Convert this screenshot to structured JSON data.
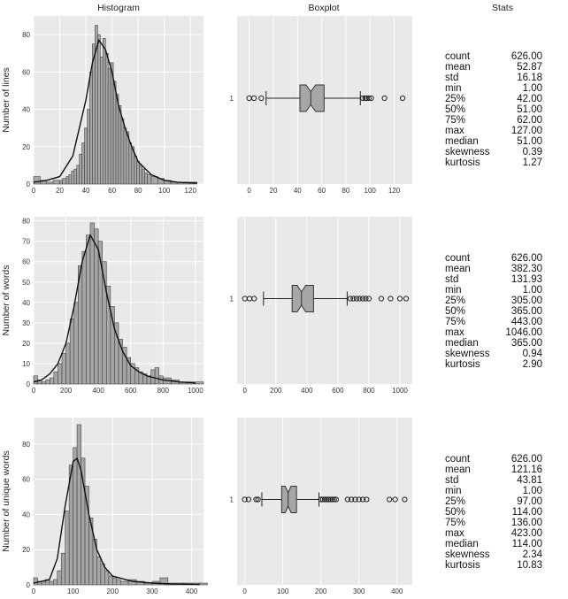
{
  "headers": {
    "histogram": "Histogram",
    "boxplot": "Boxplot",
    "stats": "Stats"
  },
  "chart_data": [
    {
      "type": "bar",
      "ylabel": "Number of lines",
      "xlim": [
        0,
        130
      ],
      "ylim": [
        0,
        90
      ],
      "xticks": [
        0,
        20,
        40,
        60,
        80,
        100,
        120
      ],
      "yticks": [
        0,
        20,
        40,
        60,
        80
      ],
      "kde": [
        [
          0,
          1
        ],
        [
          10,
          2
        ],
        [
          20,
          4
        ],
        [
          30,
          15
        ],
        [
          40,
          45
        ],
        [
          45,
          65
        ],
        [
          50,
          77
        ],
        [
          55,
          72
        ],
        [
          60,
          60
        ],
        [
          65,
          42
        ],
        [
          70,
          30
        ],
        [
          75,
          20
        ],
        [
          80,
          12
        ],
        [
          90,
          5
        ],
        [
          100,
          2
        ],
        [
          110,
          1
        ],
        [
          125,
          0.5
        ]
      ],
      "hist": [
        [
          0,
          4
        ],
        [
          5,
          2
        ],
        [
          10,
          1
        ],
        [
          15,
          2
        ],
        [
          20,
          2
        ],
        [
          22,
          3
        ],
        [
          25,
          4
        ],
        [
          27,
          5
        ],
        [
          29,
          7
        ],
        [
          31,
          8
        ],
        [
          33,
          10
        ],
        [
          35,
          16
        ],
        [
          37,
          22
        ],
        [
          39,
          30
        ],
        [
          41,
          40
        ],
        [
          43,
          60
        ],
        [
          45,
          75
        ],
        [
          47,
          85
        ],
        [
          49,
          80
        ],
        [
          51,
          68
        ],
        [
          53,
          78
        ],
        [
          55,
          70
        ],
        [
          57,
          62
        ],
        [
          59,
          65
        ],
        [
          61,
          55
        ],
        [
          63,
          48
        ],
        [
          65,
          42
        ],
        [
          67,
          35
        ],
        [
          69,
          30
        ],
        [
          71,
          28
        ],
        [
          73,
          22
        ],
        [
          75,
          20
        ],
        [
          77,
          15
        ],
        [
          79,
          12
        ],
        [
          81,
          10
        ],
        [
          83,
          8
        ],
        [
          85,
          6
        ],
        [
          87,
          5
        ],
        [
          90,
          4
        ],
        [
          95,
          3
        ],
        [
          100,
          2
        ],
        [
          105,
          1
        ],
        [
          110,
          1
        ],
        [
          115,
          1
        ],
        [
          120,
          1
        ]
      ],
      "box": {
        "whisker_low": 14,
        "q1": 42,
        "median": 51,
        "q3": 62,
        "whisker_high": 92,
        "outliers": [
          0,
          4,
          10,
          94,
          96,
          97,
          99,
          101,
          112,
          127
        ],
        "xlim": [
          -10,
          135
        ]
      },
      "box_label": "1",
      "stats": [
        {
          "name": "count",
          "value": "626.00"
        },
        {
          "name": "mean",
          "value": "52.87"
        },
        {
          "name": "std",
          "value": "16.18"
        },
        {
          "name": "min",
          "value": "1.00"
        },
        {
          "name": "25%",
          "value": "42.00"
        },
        {
          "name": "50%",
          "value": "51.00"
        },
        {
          "name": "75%",
          "value": "62.00"
        },
        {
          "name": "max",
          "value": "127.00"
        },
        {
          "name": "median",
          "value": "51.00"
        },
        {
          "name": "skewness",
          "value": "0.39"
        },
        {
          "name": "kurtosis",
          "value": "1.27"
        }
      ]
    },
    {
      "type": "bar",
      "ylabel": "Number of words",
      "xlim": [
        0,
        1050
      ],
      "ylim": [
        0,
        82
      ],
      "xticks": [
        0,
        200,
        400,
        600,
        800,
        1000
      ],
      "yticks": [
        0,
        10,
        20,
        30,
        40,
        50,
        60,
        70,
        80
      ],
      "kde": [
        [
          0,
          1
        ],
        [
          50,
          2
        ],
        [
          100,
          5
        ],
        [
          150,
          10
        ],
        [
          200,
          20
        ],
        [
          250,
          38
        ],
        [
          300,
          60
        ],
        [
          350,
          73
        ],
        [
          400,
          66
        ],
        [
          450,
          45
        ],
        [
          500,
          27
        ],
        [
          550,
          16
        ],
        [
          600,
          9
        ],
        [
          650,
          6
        ],
        [
          700,
          4
        ],
        [
          800,
          2
        ],
        [
          900,
          1
        ],
        [
          1000,
          0.5
        ]
      ],
      "hist": [
        [
          0,
          4
        ],
        [
          25,
          2
        ],
        [
          50,
          1
        ],
        [
          75,
          2
        ],
        [
          100,
          3
        ],
        [
          125,
          6
        ],
        [
          150,
          10
        ],
        [
          175,
          15
        ],
        [
          200,
          20
        ],
        [
          225,
          32
        ],
        [
          250,
          40
        ],
        [
          275,
          58
        ],
        [
          300,
          65
        ],
        [
          325,
          73
        ],
        [
          350,
          79
        ],
        [
          375,
          76
        ],
        [
          400,
          70
        ],
        [
          425,
          60
        ],
        [
          450,
          48
        ],
        [
          475,
          38
        ],
        [
          500,
          30
        ],
        [
          525,
          22
        ],
        [
          550,
          18
        ],
        [
          575,
          13
        ],
        [
          600,
          10
        ],
        [
          625,
          8
        ],
        [
          650,
          6
        ],
        [
          675,
          5
        ],
        [
          700,
          4
        ],
        [
          725,
          7
        ],
        [
          750,
          8
        ],
        [
          775,
          4
        ],
        [
          800,
          3
        ],
        [
          850,
          2
        ],
        [
          900,
          1
        ],
        [
          950,
          1
        ],
        [
          1000,
          1
        ]
      ],
      "box": {
        "whisker_low": 120,
        "q1": 305,
        "median": 365,
        "q3": 443,
        "whisker_high": 660,
        "outliers": [
          0,
          30,
          60,
          680,
          700,
          720,
          740,
          760,
          780,
          800,
          880,
          940,
          1000,
          1040
        ],
        "xlim": [
          -50,
          1080
        ]
      },
      "box_label": "1",
      "stats": [
        {
          "name": "count",
          "value": "626.00"
        },
        {
          "name": "mean",
          "value": "382.30"
        },
        {
          "name": "std",
          "value": "131.93"
        },
        {
          "name": "min",
          "value": "1.00"
        },
        {
          "name": "25%",
          "value": "305.00"
        },
        {
          "name": "50%",
          "value": "365.00"
        },
        {
          "name": "75%",
          "value": "443.00"
        },
        {
          "name": "max",
          "value": "1046.00"
        },
        {
          "name": "median",
          "value": "365.00"
        },
        {
          "name": "skewness",
          "value": "0.94"
        },
        {
          "name": "kurtosis",
          "value": "2.90"
        }
      ]
    },
    {
      "type": "bar",
      "ylabel": "Number of unique words",
      "xlim": [
        0,
        430
      ],
      "ylim": [
        0,
        95
      ],
      "xticks": [
        0,
        100,
        200,
        300,
        400
      ],
      "yticks": [
        0,
        20,
        40,
        60,
        80
      ],
      "kde": [
        [
          0,
          1
        ],
        [
          40,
          3
        ],
        [
          60,
          15
        ],
        [
          80,
          45
        ],
        [
          100,
          70
        ],
        [
          110,
          72
        ],
        [
          120,
          65
        ],
        [
          140,
          40
        ],
        [
          160,
          20
        ],
        [
          180,
          10
        ],
        [
          200,
          5
        ],
        [
          250,
          2
        ],
        [
          300,
          1
        ],
        [
          350,
          0.5
        ],
        [
          420,
          0.2
        ]
      ],
      "hist": [
        [
          0,
          4
        ],
        [
          10,
          2
        ],
        [
          20,
          2
        ],
        [
          30,
          3
        ],
        [
          40,
          2
        ],
        [
          50,
          3
        ],
        [
          60,
          8
        ],
        [
          70,
          18
        ],
        [
          80,
          42
        ],
        [
          90,
          68
        ],
        [
          100,
          78
        ],
        [
          110,
          91
        ],
        [
          120,
          72
        ],
        [
          130,
          56
        ],
        [
          140,
          38
        ],
        [
          150,
          26
        ],
        [
          160,
          16
        ],
        [
          170,
          12
        ],
        [
          180,
          8
        ],
        [
          190,
          5
        ],
        [
          200,
          4
        ],
        [
          210,
          3
        ],
        [
          220,
          2
        ],
        [
          240,
          3
        ],
        [
          260,
          2
        ],
        [
          280,
          1
        ],
        [
          300,
          2
        ],
        [
          320,
          4
        ],
        [
          340,
          1
        ],
        [
          380,
          1
        ],
        [
          400,
          1
        ],
        [
          420,
          1
        ]
      ],
      "box": {
        "whisker_low": 45,
        "q1": 97,
        "median": 114,
        "q3": 136,
        "whisker_high": 195,
        "outliers": [
          0,
          10,
          30,
          35,
          200,
          205,
          210,
          215,
          220,
          225,
          230,
          235,
          240,
          270,
          280,
          290,
          300,
          310,
          320,
          380,
          395,
          420
        ],
        "xlim": [
          -20,
          440
        ]
      },
      "box_label": "1",
      "stats": [
        {
          "name": "count",
          "value": "626.00"
        },
        {
          "name": "mean",
          "value": "121.16"
        },
        {
          "name": "std",
          "value": "43.81"
        },
        {
          "name": "min",
          "value": "1.00"
        },
        {
          "name": "25%",
          "value": "97.00"
        },
        {
          "name": "50%",
          "value": "114.00"
        },
        {
          "name": "75%",
          "value": "136.00"
        },
        {
          "name": "max",
          "value": "423.00"
        },
        {
          "name": "median",
          "value": "114.00"
        },
        {
          "name": "skewness",
          "value": "2.34"
        },
        {
          "name": "kurtosis",
          "value": "10.83"
        }
      ]
    }
  ],
  "colors": {
    "panel_bg": "#e9e9e9",
    "bar_fill": "#a6a6a6",
    "grid": "#ffffff",
    "line": "#111111"
  }
}
